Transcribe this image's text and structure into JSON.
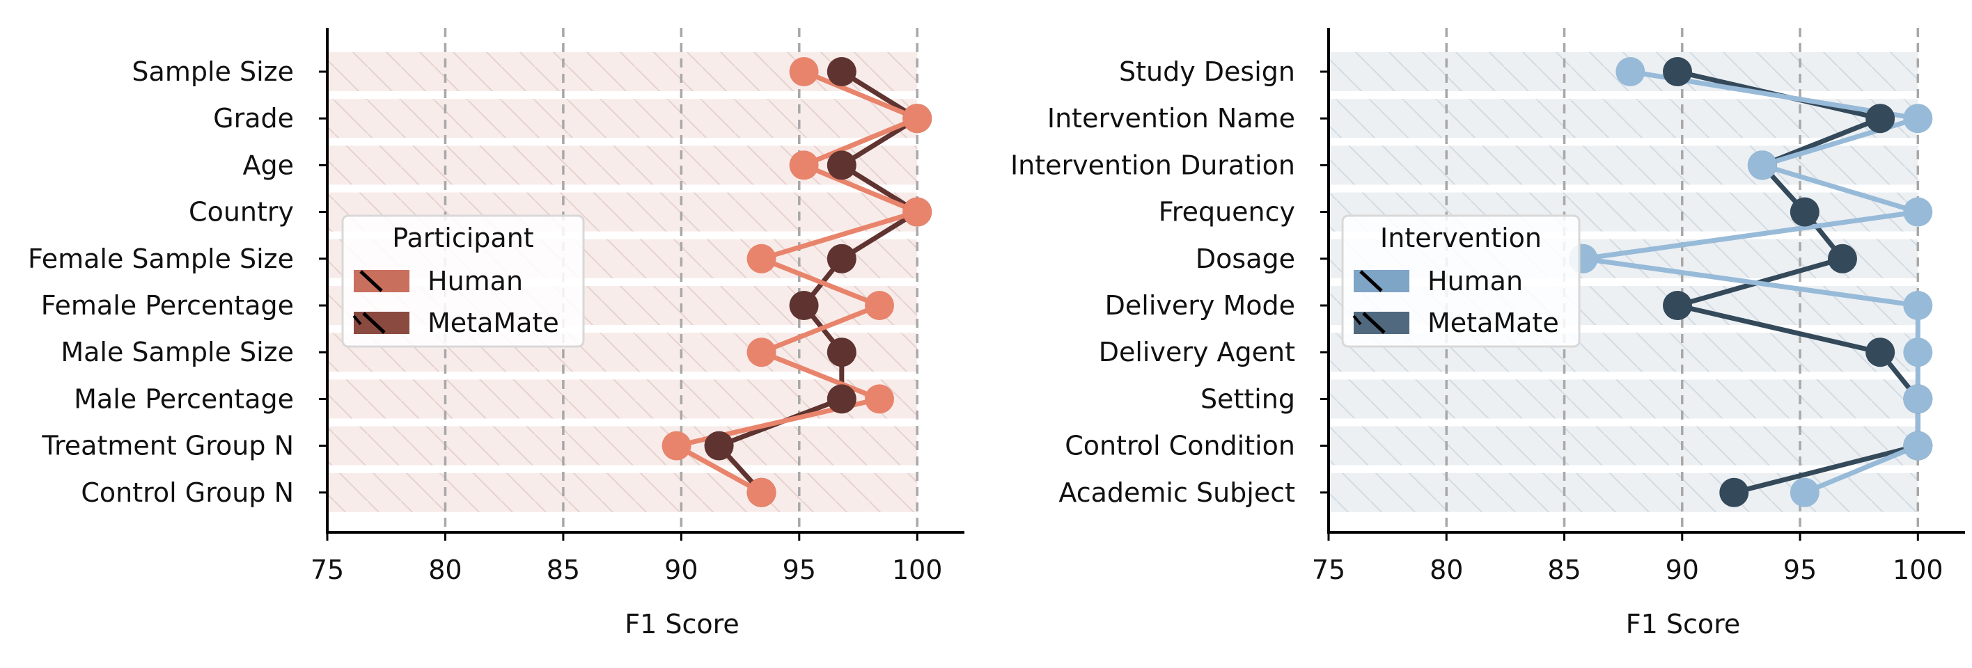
{
  "colors": {
    "left_human": "#E8846B",
    "left_metamate": "#5E3330",
    "left_legend_human": "#C96F5E",
    "left_legend_metamate": "#8B4A40",
    "left_band": "#F8ECEA",
    "right_human": "#97BAD8",
    "right_metamate": "#34495A",
    "right_legend_human": "#7EA4C6",
    "right_legend_metamate": "#50697F",
    "right_band": "#ECF0F3",
    "grid": "#A8A8A8"
  },
  "chart_data": [
    {
      "type": "line",
      "orientation": "horizontal",
      "xlabel": "F1 Score",
      "xlim": [
        75,
        102
      ],
      "xticks": [
        75,
        80,
        85,
        90,
        95,
        100
      ],
      "grid_x": [
        80,
        85,
        90,
        95,
        100
      ],
      "categories": [
        "Sample Size",
        "Grade",
        "Age",
        "Country",
        "Female Sample Size",
        "Female Percentage",
        "Male Sample Size",
        "Male Percentage",
        "Treatment Group N",
        "Control Group N"
      ],
      "series": [
        {
          "name": "Human",
          "values": [
            95.2,
            100,
            95.2,
            100,
            93.4,
            98.4,
            93.4,
            98.4,
            89.8,
            93.4
          ]
        },
        {
          "name": "MetaMate",
          "values": [
            96.8,
            100,
            96.8,
            100,
            96.8,
            95.2,
            96.8,
            96.8,
            91.6,
            93.4
          ]
        }
      ],
      "legend": {
        "title": "Participant",
        "position": "center-left",
        "entries": [
          "Human",
          "MetaMate"
        ]
      }
    },
    {
      "type": "line",
      "orientation": "horizontal",
      "xlabel": "F1 Score",
      "xlim": [
        75,
        102
      ],
      "xticks": [
        75,
        80,
        85,
        90,
        95,
        100
      ],
      "grid_x": [
        80,
        85,
        90,
        95,
        100
      ],
      "categories": [
        "Study Design",
        "Intervention Name",
        "Intervention Duration",
        "Frequency",
        "Dosage",
        "Delivery Mode",
        "Delivery Agent",
        "Setting",
        "Control Condition",
        "Academic Subject"
      ],
      "series": [
        {
          "name": "Human",
          "values": [
            87.8,
            100,
            93.4,
            100,
            85.8,
            100,
            100,
            100,
            100,
            95.2
          ]
        },
        {
          "name": "MetaMate",
          "values": [
            89.8,
            98.4,
            93.4,
            95.2,
            96.8,
            89.8,
            98.4,
            100,
            100,
            92.2
          ]
        }
      ],
      "legend": {
        "title": "Intervention",
        "position": "center-left",
        "entries": [
          "Human",
          "MetaMate"
        ]
      }
    }
  ]
}
